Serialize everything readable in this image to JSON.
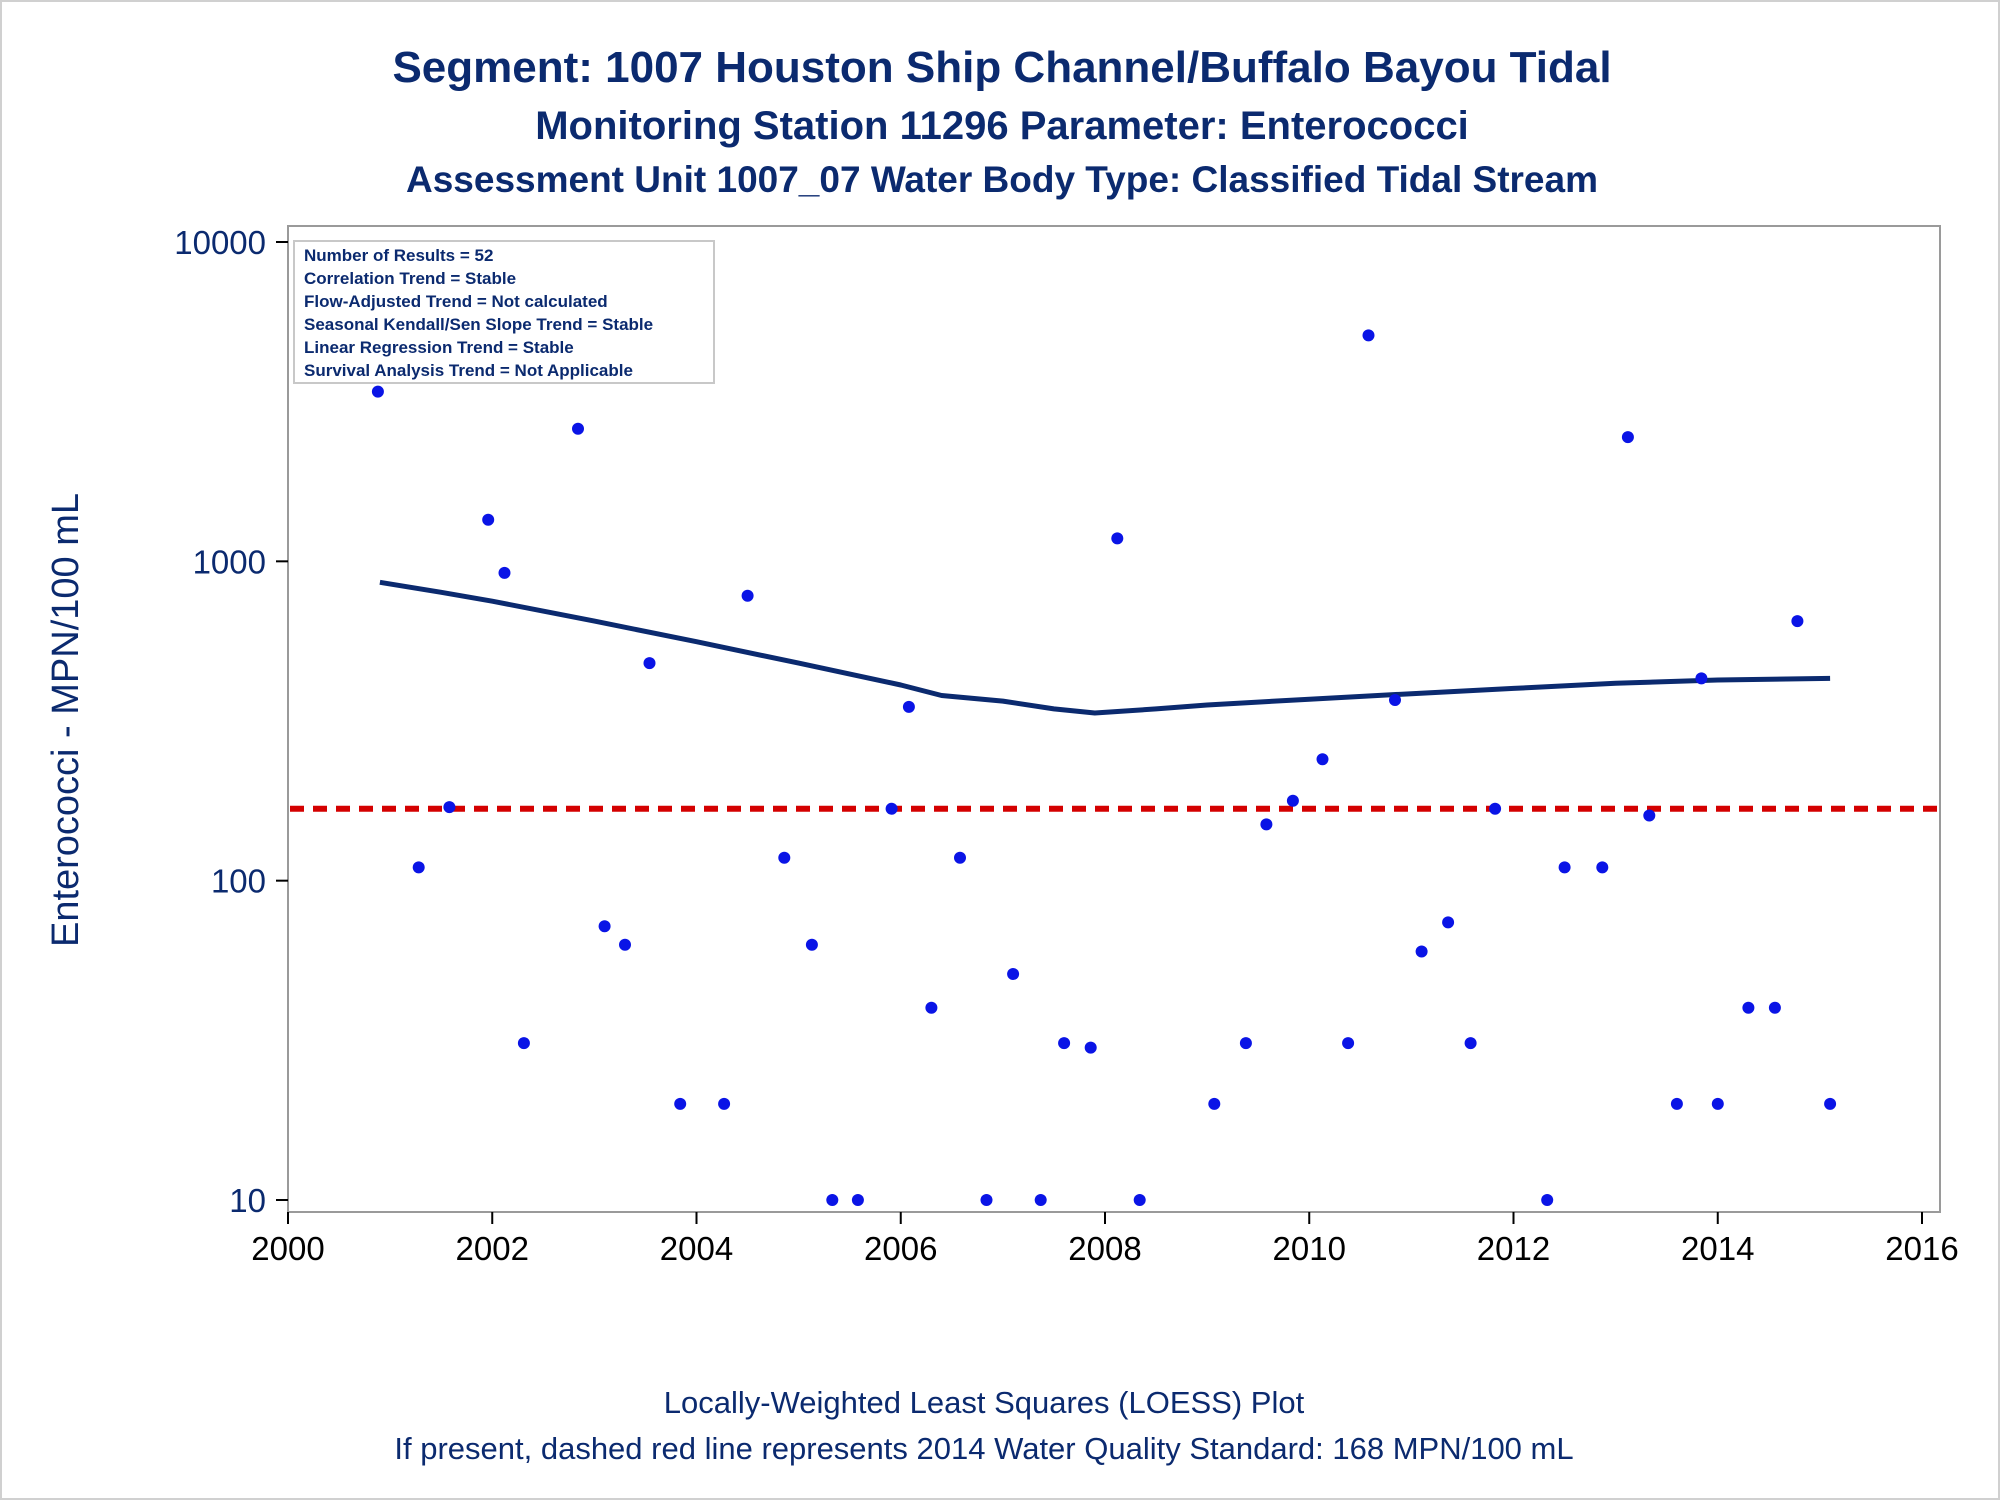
{
  "titles": {
    "line1": "Segment: 1007  Houston Ship Channel/Buffalo Bayou Tidal",
    "line2": "Monitoring Station 11296 Parameter: Enterococci",
    "line3": "Assessment Unit 1007_07   Water Body Type: Classified Tidal Stream"
  },
  "stats_box": [
    "Number of Results = 52",
    "Correlation Trend = Stable",
    "Flow-Adjusted Trend = Not calculated",
    "Seasonal Kendall/Sen Slope Trend = Stable",
    "Linear Regression Trend = Stable",
    "Survival Analysis Trend = Not Applicable"
  ],
  "footer": {
    "line1": "Locally-Weighted Least Squares (LOESS) Plot",
    "line2": "If present, dashed red line represents 2014 Water Quality Standard: 168 MPN/100 mL"
  },
  "colors": {
    "title": "#0b2a6f",
    "points": "#0a14e6",
    "loess": "#0b2a6f",
    "standard": "#d40000",
    "axis_frame": "#9a9a9a",
    "ticks": "#000000"
  },
  "chart_data": {
    "type": "scatter",
    "ylabel": "Enterococci - MPN/100 mL",
    "xlabel": "",
    "y_scale": "log",
    "xlim": [
      2000,
      2016
    ],
    "ylim": [
      10,
      10000
    ],
    "x_ticks": [
      2000,
      2002,
      2004,
      2006,
      2008,
      2010,
      2012,
      2014,
      2016
    ],
    "y_ticks": [
      10,
      100,
      1000,
      10000
    ],
    "grid": false,
    "standard_line": {
      "value": 168,
      "style": "dashed"
    },
    "series": [
      {
        "type": "scatter",
        "points": [
          [
            2000.88,
            3400
          ],
          [
            2001.28,
            110
          ],
          [
            2001.58,
            170
          ],
          [
            2001.96,
            1350
          ],
          [
            2002.12,
            920
          ],
          [
            2002.31,
            31
          ],
          [
            2002.84,
            2600
          ],
          [
            2003.1,
            72
          ],
          [
            2003.3,
            63
          ],
          [
            2003.54,
            480
          ],
          [
            2003.84,
            20
          ],
          [
            2004.27,
            20
          ],
          [
            2004.5,
            780
          ],
          [
            2004.86,
            118
          ],
          [
            2005.13,
            63
          ],
          [
            2005.33,
            10
          ],
          [
            2005.58,
            10
          ],
          [
            2005.91,
            168
          ],
          [
            2006.08,
            350
          ],
          [
            2006.3,
            40
          ],
          [
            2006.58,
            118
          ],
          [
            2006.84,
            10
          ],
          [
            2007.1,
            51
          ],
          [
            2007.37,
            10
          ],
          [
            2007.6,
            31
          ],
          [
            2007.86,
            30
          ],
          [
            2008.12,
            1180
          ],
          [
            2008.34,
            10
          ],
          [
            2009.07,
            20
          ],
          [
            2009.38,
            31
          ],
          [
            2009.58,
            150
          ],
          [
            2009.84,
            178
          ],
          [
            2010.13,
            240
          ],
          [
            2010.38,
            31
          ],
          [
            2010.58,
            5100
          ],
          [
            2010.84,
            368
          ],
          [
            2011.1,
            60
          ],
          [
            2011.36,
            74
          ],
          [
            2011.58,
            31
          ],
          [
            2011.82,
            168
          ],
          [
            2012.33,
            10
          ],
          [
            2012.5,
            110
          ],
          [
            2012.87,
            110
          ],
          [
            2013.12,
            2450
          ],
          [
            2013.33,
            160
          ],
          [
            2013.6,
            20
          ],
          [
            2013.84,
            430
          ],
          [
            2014.0,
            20
          ],
          [
            2014.3,
            40
          ],
          [
            2014.56,
            40
          ],
          [
            2014.78,
            650
          ],
          [
            2015.1,
            20
          ]
        ]
      },
      {
        "type": "line",
        "name": "LOESS",
        "points": [
          [
            2000.9,
            860
          ],
          [
            2001.5,
            800
          ],
          [
            2002.0,
            750
          ],
          [
            2003.0,
            650
          ],
          [
            2004.0,
            560
          ],
          [
            2005.0,
            480
          ],
          [
            2006.0,
            410
          ],
          [
            2006.4,
            380
          ],
          [
            2007.0,
            365
          ],
          [
            2007.5,
            345
          ],
          [
            2007.9,
            335
          ],
          [
            2008.5,
            345
          ],
          [
            2009.0,
            355
          ],
          [
            2010.0,
            370
          ],
          [
            2011.0,
            385
          ],
          [
            2012.0,
            400
          ],
          [
            2013.0,
            415
          ],
          [
            2014.0,
            425
          ],
          [
            2015.1,
            430
          ]
        ]
      }
    ]
  }
}
